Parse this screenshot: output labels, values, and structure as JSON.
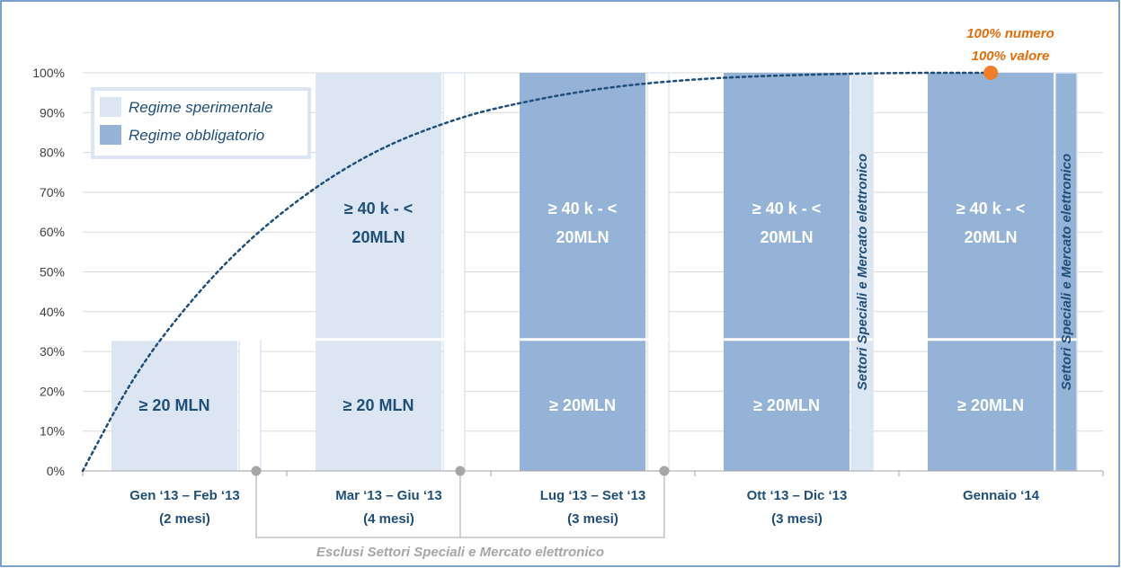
{
  "chart_data": {
    "type": "bar",
    "stacked": true,
    "yaxis": {
      "min": 0,
      "max": 100,
      "step": 10,
      "tick_suffix": "%"
    },
    "grid": true,
    "legend": {
      "placement": "top-left",
      "entries": [
        {
          "name": "Regime sperimentale",
          "color": "#dce6f2"
        },
        {
          "name": "Regime obbligatorio",
          "color": "#95b3d7"
        }
      ]
    },
    "categories": [
      {
        "label": "Gen ‘13 – Feb ‘13",
        "sublabel": "(2 mesi)"
      },
      {
        "label": "Mar ‘13 – Giu ‘13",
        "sublabel": "(4 mesi)"
      },
      {
        "label": "Lug ‘13 – Set ‘13",
        "sublabel": "(3 mesi)"
      },
      {
        "label": "Ott ‘13 – Dic ‘13",
        "sublabel": "(3 mesi)"
      },
      {
        "label": "Gennaio ‘14",
        "sublabel": ""
      }
    ],
    "segments": [
      {
        "category": 0,
        "from": 0,
        "to": 33,
        "label": "≥ 20 MLN",
        "regime": "sperimentale"
      },
      {
        "category": 1,
        "from": 0,
        "to": 33,
        "label": "≥ 20 MLN",
        "regime": "sperimentale"
      },
      {
        "category": 1,
        "from": 33,
        "to": 100,
        "label": "≥ 40 k - < 20MLN",
        "regime": "sperimentale"
      },
      {
        "category": 2,
        "from": 0,
        "to": 33,
        "label": "≥ 20MLN",
        "regime": "obbligatorio"
      },
      {
        "category": 2,
        "from": 33,
        "to": 100,
        "label": "≥ 40 k - < 20MLN",
        "regime": "obbligatorio"
      },
      {
        "category": 3,
        "from": 0,
        "to": 33,
        "label": "≥ 20MLN",
        "regime": "obbligatorio"
      },
      {
        "category": 3,
        "from": 33,
        "to": 100,
        "label": "≥ 40 k - < 20MLN",
        "regime": "obbligatorio"
      },
      {
        "category": 4,
        "from": 0,
        "to": 33,
        "label": "≥ 20MLN",
        "regime": "obbligatorio"
      },
      {
        "category": 4,
        "from": 33,
        "to": 100,
        "label": "≥ 40 k - < 20MLN",
        "regime": "obbligatorio"
      }
    ],
    "side_bars": [
      {
        "category": 0,
        "from": 0,
        "to": 33,
        "regime": "none",
        "label": ""
      },
      {
        "category": 1,
        "from": 0,
        "to": 33,
        "regime": "none",
        "label": ""
      },
      {
        "category": 1,
        "from": 33,
        "to": 100,
        "regime": "none",
        "label": ""
      },
      {
        "category": 2,
        "from": 0,
        "to": 33,
        "regime": "none",
        "label": ""
      },
      {
        "category": 2,
        "from": 33,
        "to": 100,
        "regime": "none",
        "label": ""
      },
      {
        "category": 3,
        "from": 0,
        "to": 100,
        "regime": "sperimentale",
        "label": "Settori Speciali e Mercato elettronico"
      },
      {
        "category": 4,
        "from": 0,
        "to": 100,
        "regime": "obbligatorio",
        "label": "Settori Speciali e Mercato elettronico"
      }
    ],
    "curve": {
      "type": "dotted-line",
      "color": "#1f4e79",
      "points": [
        {
          "x": 0.0,
          "y": 0
        },
        {
          "x": 0.25,
          "y": 24
        },
        {
          "x": 0.5,
          "y": 41
        },
        {
          "x": 0.75,
          "y": 55
        },
        {
          "x": 1.0,
          "y": 66
        },
        {
          "x": 1.25,
          "y": 75
        },
        {
          "x": 1.5,
          "y": 82
        },
        {
          "x": 1.75,
          "y": 87
        },
        {
          "x": 2.0,
          "y": 91
        },
        {
          "x": 2.5,
          "y": 96
        },
        {
          "x": 3.0,
          "y": 98.5
        },
        {
          "x": 3.5,
          "y": 99.5
        },
        {
          "x": 4.0,
          "y": 100
        },
        {
          "x": 4.45,
          "y": 100
        }
      ]
    },
    "endpoint": {
      "x": 4.45,
      "y": 100,
      "color": "#f07e26"
    },
    "annotations": {
      "line1": "100% numero",
      "line2": "100% valore",
      "color": "#e46c0a"
    },
    "bracket_label": "Esclusi Settori Speciali e Mercato elettronico",
    "colors": {
      "sperimentale": "#dce6f2",
      "obbligatorio": "#95b3d7",
      "label_on_light": "#1f4e79",
      "label_on_dark": "#ffffff",
      "grid": "#d9d9d9",
      "frame": "#4f81bd"
    }
  }
}
